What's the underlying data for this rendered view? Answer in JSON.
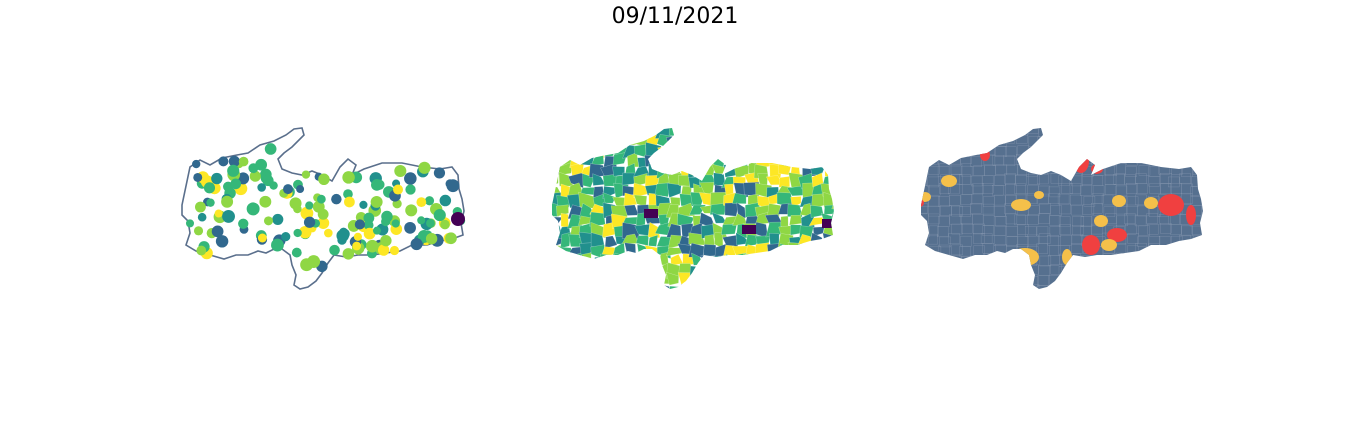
{
  "figure": {
    "title": "09/11/2021"
  },
  "colors": {
    "outline": "#5a6f8c",
    "viridis_dark": "#440154",
    "viridis_blue": "#31688e",
    "viridis_teal": "#21908d",
    "viridis_green": "#35b779",
    "viridis_lime": "#8fd744",
    "viridis_yellow": "#fde725",
    "class_base": "#56708f",
    "class_mid": "#f5c04a",
    "class_high": "#f04040"
  },
  "maps": [
    {
      "name": "points-map",
      "style": "proportional-points"
    },
    {
      "name": "choropleth-map",
      "style": "choropleth"
    },
    {
      "name": "classification-map",
      "style": "categorical"
    }
  ]
}
